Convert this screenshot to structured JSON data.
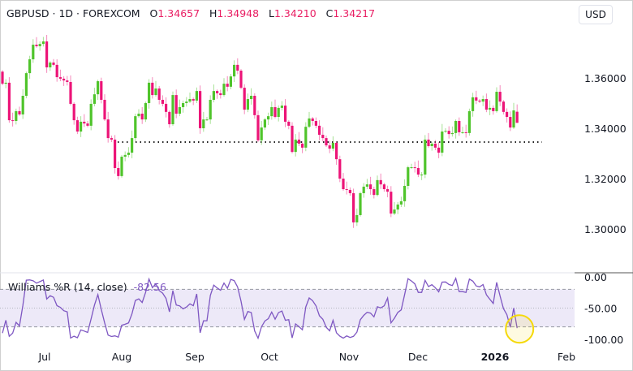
{
  "header": {
    "symbol": "GBPUSD",
    "interval": "1D",
    "exchange": "FOREXCOM",
    "ohlc": {
      "o_label": "O",
      "o": "1.34657",
      "h_label": "H",
      "h": "1.34948",
      "l_label": "L",
      "l": "1.34210",
      "c_label": "C",
      "c": "1.34217"
    }
  },
  "currency_button": "USD",
  "indicator": {
    "label": "Williams %R (14, close)",
    "value": "-82.56",
    "color": "#7e57c2",
    "band_color": "#ede9f8"
  },
  "price_axis": {
    "ticks": [
      "1.36000",
      "1.34000",
      "1.32000",
      "1.30000"
    ],
    "tick_values": [
      1.36,
      1.34,
      1.32,
      1.3
    ]
  },
  "indicator_axis": {
    "ticks": [
      "0.00",
      "-50.00",
      "-100.00"
    ],
    "tick_values": [
      0,
      -50,
      -100
    ],
    "bands": [
      -20,
      -50,
      -80
    ]
  },
  "time_axis": {
    "ticks": [
      "Jul",
      "Aug",
      "Sep",
      "Oct",
      "Nov",
      "Dec",
      "2026",
      "Feb"
    ],
    "bold": "2026"
  },
  "horizontal_line": {
    "price": 1.3345,
    "style": "dotted"
  },
  "highlight_marker": {
    "color": "#f5d90a",
    "target": "last Williams %R value"
  },
  "colors": {
    "up": "#4fc42b",
    "down": "#ec1477"
  },
  "chart_data": {
    "type": "candlestick",
    "closes": [
      1.3577,
      1.3581,
      1.3432,
      1.3429,
      1.3468,
      1.3455,
      1.3529,
      1.3619,
      1.3674,
      1.3732,
      1.3726,
      1.3735,
      1.3745,
      1.3642,
      1.3661,
      1.3652,
      1.3603,
      1.3597,
      1.359,
      1.3584,
      1.3497,
      1.3432,
      1.3387,
      1.3426,
      1.3419,
      1.341,
      1.3497,
      1.3535,
      1.3587,
      1.3513,
      1.3435,
      1.3361,
      1.3355,
      1.3242,
      1.321,
      1.3287,
      1.3294,
      1.3303,
      1.3361,
      1.3448,
      1.3458,
      1.3435,
      1.35,
      1.3581,
      1.3532,
      1.3558,
      1.3513,
      1.3497,
      1.3465,
      1.3416,
      1.3532,
      1.3458,
      1.3484,
      1.35,
      1.3506,
      1.3516,
      1.351,
      1.3548,
      1.34,
      1.3435,
      1.3435,
      1.3513,
      1.3548,
      1.3539,
      1.3532,
      1.3577,
      1.3565,
      1.3606,
      1.3652,
      1.3629,
      1.3561,
      1.3474,
      1.3516,
      1.3529,
      1.3452,
      1.3352,
      1.3403,
      1.3435,
      1.3448,
      1.3484,
      1.3445,
      1.3481,
      1.349,
      1.3426,
      1.341,
      1.3306,
      1.3355,
      1.3339,
      1.3323,
      1.3406,
      1.3439,
      1.3429,
      1.341,
      1.3374,
      1.3361,
      1.3332,
      1.3319,
      1.3342,
      1.3277,
      1.32,
      1.3158,
      1.3155,
      1.3142,
      1.3026,
      1.3055,
      1.3142,
      1.3168,
      1.3177,
      1.3158,
      1.3135,
      1.3194,
      1.3177,
      1.3158,
      1.3148,
      1.3061,
      1.3077,
      1.3097,
      1.311,
      1.3171,
      1.3245,
      1.3245,
      1.3242,
      1.3216,
      1.3216,
      1.3355,
      1.3329,
      1.3339,
      1.3323,
      1.3303,
      1.3387,
      1.339,
      1.3377,
      1.3381,
      1.3429,
      1.3384,
      1.3384,
      1.3381,
      1.3468,
      1.3523,
      1.351,
      1.3506,
      1.3516,
      1.3474,
      1.3481,
      1.3468,
      1.3545,
      1.3506,
      1.3465,
      1.3445,
      1.3403,
      1.3471,
      1.34217
    ],
    "first_open": 1.3625,
    "last_candle": {
      "open": 1.34657,
      "high": 1.34948,
      "low": 1.3421,
      "close": 1.34217
    },
    "ylim": [
      1.294,
      1.378
    ],
    "indicator_ylim": [
      -105,
      5
    ],
    "grid": false
  }
}
